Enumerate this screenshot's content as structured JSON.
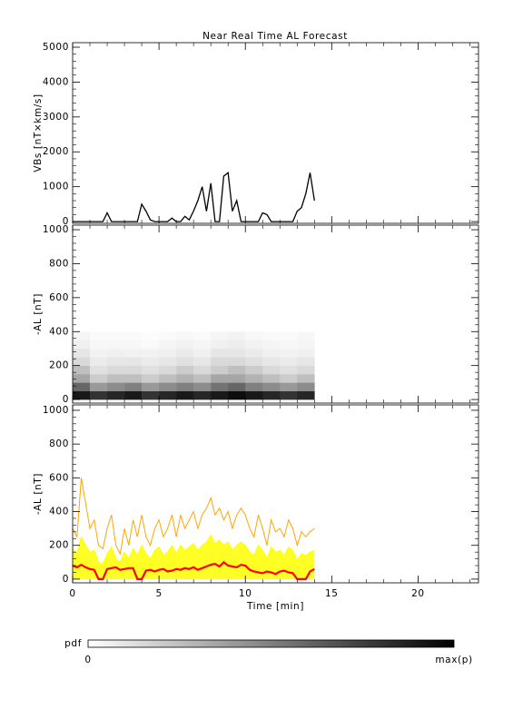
{
  "chart_data": [
    {
      "type": "line",
      "title": "Near Real Time AL Forecast",
      "y_label": "VBs [nT×km/s]",
      "x": [
        0,
        0.25,
        0.5,
        0.75,
        1,
        1.25,
        1.5,
        1.75,
        2,
        2.25,
        2.5,
        2.75,
        3,
        3.25,
        3.5,
        3.75,
        4,
        4.25,
        4.5,
        4.75,
        5,
        5.25,
        5.5,
        5.75,
        6,
        6.25,
        6.5,
        6.75,
        7,
        7.25,
        7.5,
        7.75,
        8,
        8.25,
        8.5,
        8.75,
        9,
        9.25,
        9.5,
        9.75,
        10,
        10.25,
        10.5,
        10.75,
        11,
        11.25,
        11.5,
        11.75,
        12,
        12.25,
        12.5,
        12.75,
        13,
        13.25,
        13.5,
        13.75,
        14
      ],
      "series": [
        {
          "color": "#000000",
          "values": [
            0,
            0,
            0,
            0,
            0,
            0,
            0,
            0,
            250,
            0,
            0,
            0,
            0,
            0,
            0,
            0,
            500,
            300,
            50,
            0,
            0,
            0,
            0,
            100,
            0,
            0,
            150,
            50,
            300,
            600,
            1000,
            300,
            1100,
            0,
            0,
            1300,
            1400,
            300,
            600,
            0,
            0,
            0,
            0,
            0,
            250,
            200,
            0,
            0,
            0,
            0,
            0,
            0,
            300,
            400,
            800,
            1400,
            600
          ]
        }
      ],
      "ylim": [
        -50,
        5130
      ],
      "yticks": [
        0,
        1000,
        2000,
        3000,
        4000,
        5000
      ]
    },
    {
      "type": "heatmap",
      "y_label": "-AL [nT]",
      "x_bins": [
        0,
        1,
        2,
        3,
        4,
        5,
        6,
        7,
        8,
        9,
        10,
        11,
        12,
        13,
        14
      ],
      "y_bins": [
        0,
        50,
        100,
        150,
        200,
        250,
        300,
        350,
        400
      ],
      "values": [
        [
          0.9,
          0.8,
          0.85,
          0.9,
          0.8,
          0.85,
          0.9,
          0.85,
          0.9,
          0.95,
          0.9,
          0.85,
          0.8,
          0.85
        ],
        [
          0.6,
          0.4,
          0.45,
          0.5,
          0.4,
          0.45,
          0.5,
          0.45,
          0.55,
          0.6,
          0.5,
          0.45,
          0.4,
          0.45
        ],
        [
          0.35,
          0.2,
          0.25,
          0.25,
          0.2,
          0.25,
          0.3,
          0.25,
          0.35,
          0.35,
          0.3,
          0.25,
          0.2,
          0.25
        ],
        [
          0.25,
          0.12,
          0.15,
          0.15,
          0.12,
          0.15,
          0.2,
          0.15,
          0.2,
          0.25,
          0.2,
          0.15,
          0.12,
          0.15
        ],
        [
          0.15,
          0.08,
          0.1,
          0.1,
          0.08,
          0.1,
          0.12,
          0.1,
          0.15,
          0.15,
          0.12,
          0.1,
          0.08,
          0.1
        ],
        [
          0.1,
          0.05,
          0.06,
          0.05,
          0.05,
          0.06,
          0.08,
          0.06,
          0.1,
          0.1,
          0.08,
          0.06,
          0.05,
          0.06
        ],
        [
          0.06,
          0.03,
          0.03,
          0.03,
          0.02,
          0.04,
          0.05,
          0.04,
          0.06,
          0.07,
          0.05,
          0.04,
          0.03,
          0.04
        ],
        [
          0.04,
          0.02,
          0.02,
          0.02,
          0.01,
          0.02,
          0.03,
          0.02,
          0.04,
          0.05,
          0.03,
          0.02,
          0.02,
          0.03
        ]
      ],
      "ylim": [
        -21,
        1027
      ],
      "yticks": [
        0,
        200,
        400,
        600,
        800,
        1000
      ],
      "colorbar_label": "pdf",
      "zlim": [
        0,
        {
          "value": 1,
          "label": "max(p)"
        }
      ]
    },
    {
      "type": "line",
      "y_label": "-AL [nT]",
      "x_label": "Time [min]",
      "x": [
        0,
        0.25,
        0.5,
        0.75,
        1,
        1.25,
        1.5,
        1.75,
        2,
        2.25,
        2.5,
        2.75,
        3,
        3.25,
        3.5,
        3.75,
        4,
        4.25,
        4.5,
        4.75,
        5,
        5.25,
        5.5,
        5.75,
        6,
        6.25,
        6.5,
        6.75,
        7,
        7.25,
        7.5,
        7.75,
        8,
        8.25,
        8.5,
        8.75,
        9,
        9.25,
        9.5,
        9.75,
        10,
        10.25,
        10.5,
        10.75,
        11,
        11.25,
        11.5,
        11.75,
        12,
        12.25,
        12.5,
        12.75,
        13,
        13.25,
        13.5,
        13.75,
        14
      ],
      "series": [
        {
          "color": "#ffa500",
          "values": [
            300,
            250,
            600,
            450,
            300,
            350,
            200,
            180,
            300,
            380,
            200,
            150,
            300,
            200,
            350,
            250,
            380,
            250,
            200,
            300,
            350,
            250,
            300,
            380,
            250,
            380,
            300,
            350,
            400,
            300,
            380,
            420,
            480,
            380,
            420,
            350,
            400,
            300,
            380,
            420,
            380,
            300,
            250,
            380,
            300,
            200,
            350,
            280,
            300,
            250,
            350,
            300,
            200,
            280,
            250,
            280,
            300
          ]
        },
        {
          "color": "#ffff00",
          "values": [
            180,
            150,
            250,
            200,
            160,
            170,
            100,
            90,
            150,
            190,
            120,
            100,
            160,
            120,
            180,
            140,
            200,
            150,
            120,
            170,
            190,
            140,
            160,
            200,
            150,
            200,
            170,
            190,
            210,
            170,
            200,
            220,
            260,
            210,
            230,
            200,
            220,
            170,
            200,
            220,
            200,
            160,
            140,
            200,
            170,
            120,
            190,
            160,
            170,
            140,
            190,
            170,
            110,
            150,
            140,
            160,
            170
          ]
        },
        {
          "color": "#ff0000",
          "values": [
            80,
            70,
            85,
            70,
            60,
            55,
            0,
            0,
            60,
            65,
            70,
            55,
            60,
            65,
            65,
            0,
            0,
            50,
            55,
            45,
            55,
            60,
            45,
            50,
            60,
            55,
            65,
            60,
            70,
            55,
            65,
            75,
            85,
            90,
            75,
            100,
            80,
            75,
            70,
            85,
            80,
            55,
            45,
            40,
            35,
            45,
            40,
            30,
            45,
            50,
            40,
            35,
            0,
            0,
            0,
            45,
            60
          ]
        }
      ],
      "xlim": [
        0,
        23.5
      ],
      "xticks": [
        0,
        5,
        10,
        15,
        20
      ],
      "ylim": [
        -22,
        1032
      ],
      "yticks": [
        0,
        200,
        400,
        600,
        800,
        1000
      ]
    }
  ]
}
